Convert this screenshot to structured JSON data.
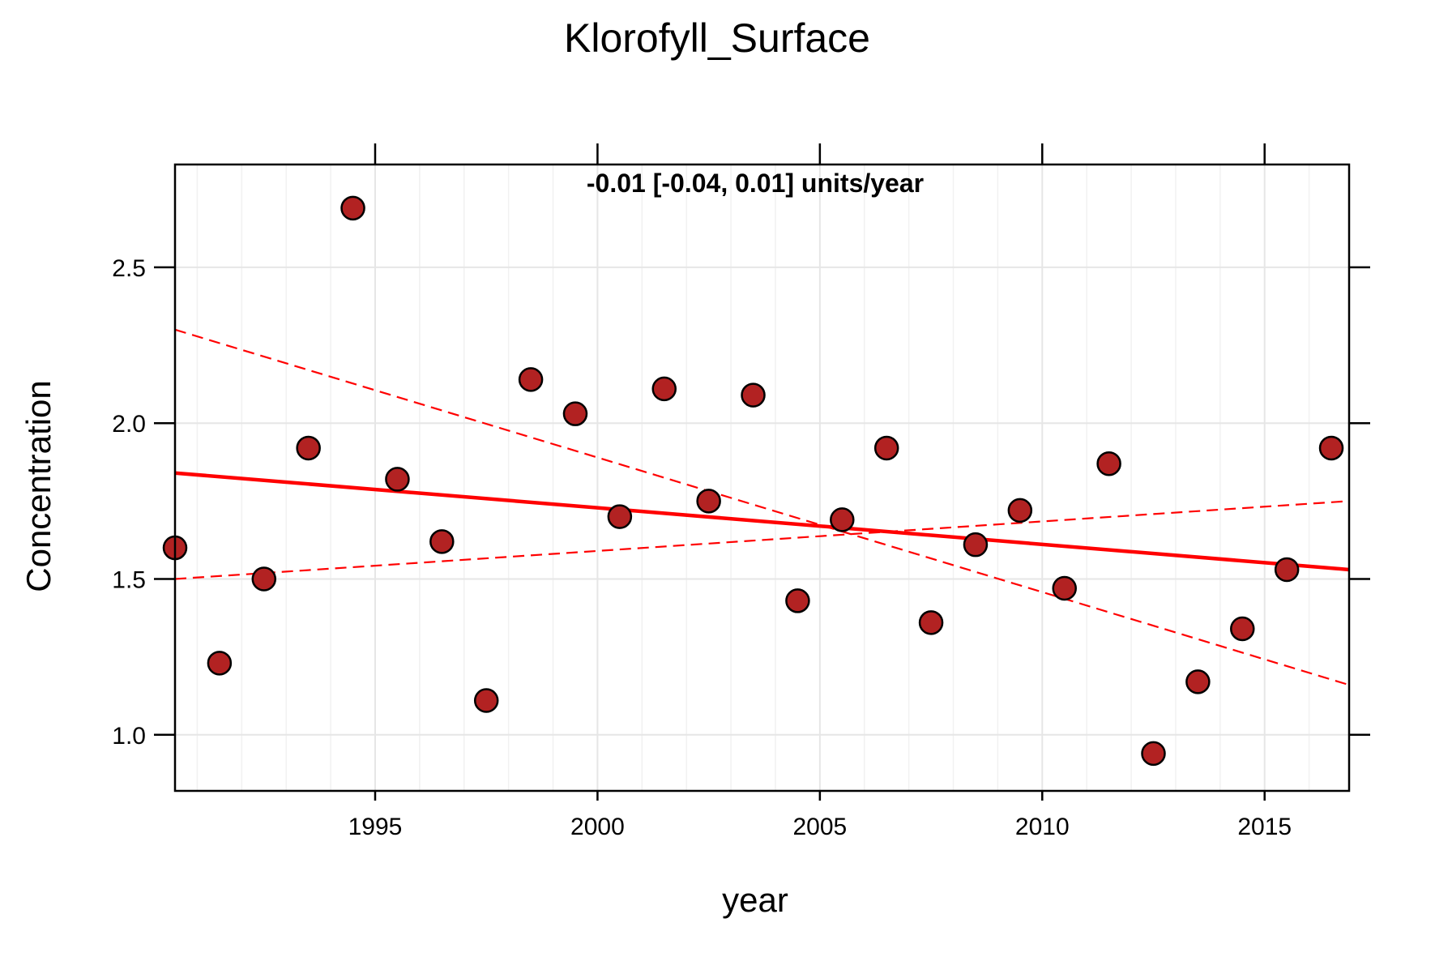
{
  "chart_data": {
    "type": "scatter",
    "title": "Klorofyll_Surface",
    "xlabel": "year",
    "ylabel": "Concentration",
    "xlim": [
      1990.5,
      2016.9
    ],
    "ylim": [
      0.82,
      2.83
    ],
    "x_ticks": [
      1995,
      2000,
      2005,
      2010,
      2015
    ],
    "x_tick_labels": [
      "1995",
      "2000",
      "2005",
      "2010",
      "2015"
    ],
    "y_ticks": [
      1.0,
      1.5,
      2.0,
      2.5
    ],
    "y_tick_labels": [
      "1.0",
      "1.5",
      "2.0",
      "2.5"
    ],
    "grid": true,
    "annotation": "-0.01 [-0.04, 0.01] units/year",
    "annotation_color": "#006400",
    "point_fill": "#b22222",
    "point_stroke": "#000000",
    "trend_color": "#ff0000",
    "points": [
      {
        "x": 1990.5,
        "y": 1.6
      },
      {
        "x": 1991.5,
        "y": 1.23
      },
      {
        "x": 1992.5,
        "y": 1.5
      },
      {
        "x": 1993.5,
        "y": 1.92
      },
      {
        "x": 1994.5,
        "y": 2.69
      },
      {
        "x": 1995.5,
        "y": 1.82
      },
      {
        "x": 1996.5,
        "y": 1.62
      },
      {
        "x": 1997.5,
        "y": 1.11
      },
      {
        "x": 1998.5,
        "y": 2.14
      },
      {
        "x": 1999.5,
        "y": 2.03
      },
      {
        "x": 2000.5,
        "y": 1.7
      },
      {
        "x": 2001.5,
        "y": 2.11
      },
      {
        "x": 2002.5,
        "y": 1.75
      },
      {
        "x": 2003.5,
        "y": 2.09
      },
      {
        "x": 2004.5,
        "y": 1.43
      },
      {
        "x": 2005.5,
        "y": 1.69
      },
      {
        "x": 2006.5,
        "y": 1.92
      },
      {
        "x": 2007.5,
        "y": 1.36
      },
      {
        "x": 2008.5,
        "y": 1.61
      },
      {
        "x": 2009.5,
        "y": 1.72
      },
      {
        "x": 2010.5,
        "y": 1.47
      },
      {
        "x": 2011.5,
        "y": 1.87
      },
      {
        "x": 2012.5,
        "y": 0.94
      },
      {
        "x": 2013.5,
        "y": 1.17
      },
      {
        "x": 2014.5,
        "y": 1.34
      },
      {
        "x": 2015.5,
        "y": 1.53
      },
      {
        "x": 2016.5,
        "y": 1.92
      }
    ],
    "trend_line": {
      "x": [
        1990.5,
        2016.9
      ],
      "y": [
        1.84,
        1.53
      ]
    },
    "ci_upper": {
      "x": [
        1990.5,
        2016.9
      ],
      "y": [
        2.3,
        1.16
      ]
    },
    "ci_lower": {
      "x": [
        1990.5,
        2016.9
      ],
      "y": [
        1.5,
        1.75
      ]
    }
  }
}
